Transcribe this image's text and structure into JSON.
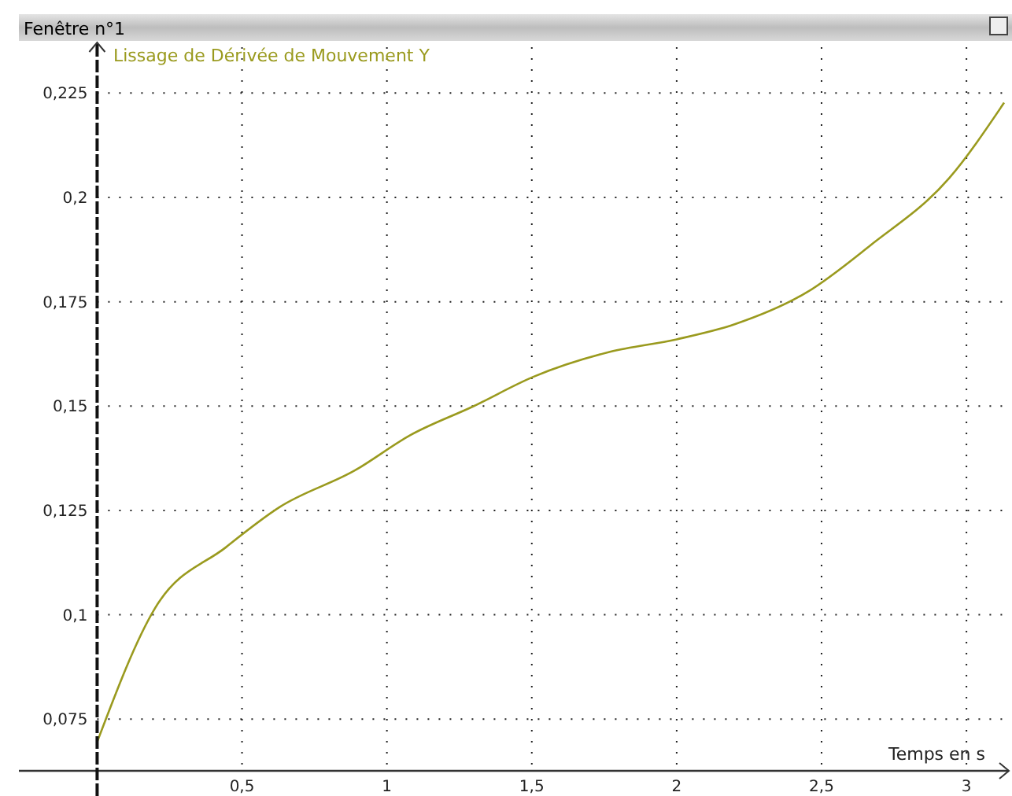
{
  "chart_data": {
    "type": "line",
    "title": "Fenêtre n°1",
    "xlabel": "Temps en s",
    "x": [
      0,
      0.2,
      0.445,
      0.63,
      0.89,
      1.08,
      1.3,
      1.505,
      1.77,
      2.0,
      2.2,
      2.45,
      2.67,
      2.94,
      3.13
    ],
    "series": [
      {
        "name": "Lissage de Dérivée de Mouvement Y",
        "color": "#9a9a1e",
        "values": [
          0.0695,
          0.1016,
          0.1162,
          0.1258,
          0.1346,
          0.143,
          0.15,
          0.157,
          0.163,
          0.166,
          0.1696,
          0.1773,
          0.1886,
          0.2046,
          0.2227
        ]
      }
    ],
    "xlim": [
      -0.27,
      3.13
    ],
    "ylim": [
      0.0626,
      0.236
    ],
    "xticks": [
      {
        "value": 0.5,
        "label": "0,5"
      },
      {
        "value": 1,
        "label": "1"
      },
      {
        "value": 1.5,
        "label": "1,5"
      },
      {
        "value": 2,
        "label": "2"
      },
      {
        "value": 2.5,
        "label": "2,5"
      },
      {
        "value": 3,
        "label": "3"
      }
    ],
    "yticks": [
      {
        "value": 0.075,
        "label": "0,075"
      },
      {
        "value": 0.1,
        "label": "0,1"
      },
      {
        "value": 0.125,
        "label": "0,125"
      },
      {
        "value": 0.15,
        "label": "0,15"
      },
      {
        "value": 0.175,
        "label": "0,175"
      },
      {
        "value": 0.2,
        "label": "0,2"
      },
      {
        "value": 0.225,
        "label": "0,225"
      }
    ],
    "ref_lines": [
      {
        "axis": "x",
        "value": 0,
        "color": "#111111",
        "line_style": "dashed"
      }
    ],
    "grid": true,
    "marker": "none",
    "line_style": "solid"
  }
}
